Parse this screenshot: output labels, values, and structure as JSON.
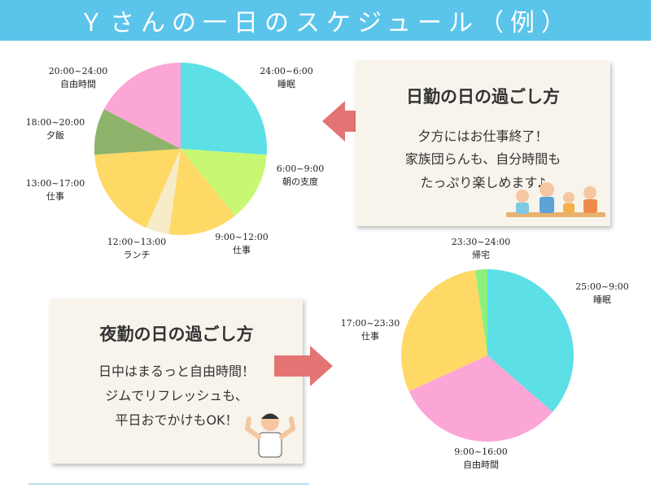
{
  "title": "Ｙさんの一日のスケジュール（例）",
  "day_note": {
    "heading": "日勤の日の過ごし方",
    "lines": [
      "夕方にはお仕事終了！",
      "家族団らんも、自分時間も",
      "たっぷり楽しめます♪"
    ]
  },
  "night_note": {
    "heading": "夜勤の日の過ごし方",
    "lines": [
      "日中はまるっと自由時間！",
      "ジムでリフレッシュも、",
      "平日おでかけもOK！"
    ]
  },
  "colors": {
    "header": "#5bc4ea",
    "sleep": "#5ddfe6",
    "prep": "#c8f872",
    "work": "#ffd966",
    "lunch": "#f6ecc8",
    "dinner": "#8db46a",
    "free": "#fba6d6",
    "home": "#8cf07e",
    "arrow": "#e47474"
  },
  "chart_data": [
    {
      "type": "pie",
      "title": "",
      "slices": [
        {
          "time": "24:00~6:00",
          "label": "睡眠",
          "value": 6,
          "color_key": "sleep"
        },
        {
          "time": "6:00~9:00",
          "label": "朝の支度",
          "value": 3,
          "color_key": "prep"
        },
        {
          "time": "9:00~12:00",
          "label": "仕事",
          "value": 3,
          "color_key": "work"
        },
        {
          "time": "12:00~13:00",
          "label": "ランチ",
          "value": 1,
          "color_key": "lunch"
        },
        {
          "time": "13:00~17:00",
          "label": "仕事",
          "value": 4,
          "color_key": "work"
        },
        {
          "time": "18:00~20:00",
          "label": "夕飯",
          "value": 2,
          "color_key": "dinner"
        },
        {
          "time": "20:00~24:00",
          "label": "自由時間",
          "value": 4,
          "color_key": "free"
        }
      ]
    },
    {
      "type": "pie",
      "title": "",
      "slices": [
        {
          "time": "25:00~9:00",
          "label": "睡眠",
          "value": 8,
          "color_key": "sleep"
        },
        {
          "time": "9:00~16:00",
          "label": "自由時間",
          "value": 7,
          "color_key": "free"
        },
        {
          "time": "17:00~23:30",
          "label": "仕事",
          "value": 6.5,
          "color_key": "work"
        },
        {
          "time": "23:30~24:00",
          "label": "帰宅",
          "value": 0.5,
          "color_key": "home"
        }
      ]
    }
  ]
}
